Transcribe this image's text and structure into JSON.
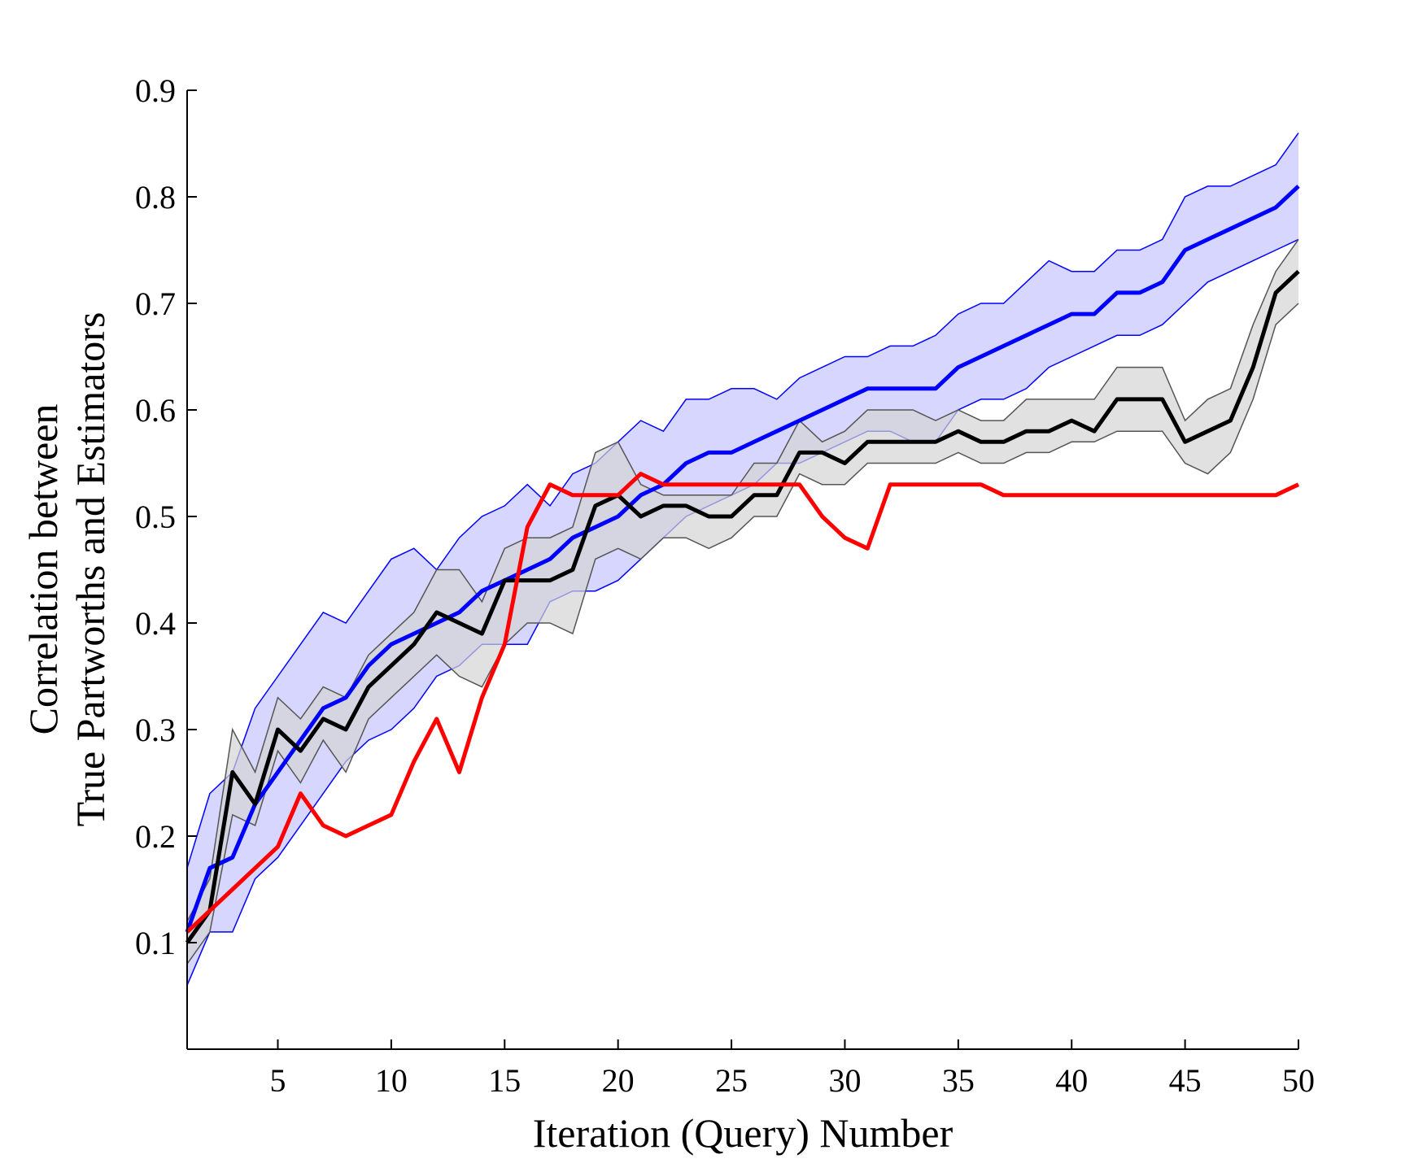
{
  "chart_data": {
    "type": "line",
    "title": "",
    "xlabel": "Iteration (Query) Number",
    "ylabel": [
      "Correlation between",
      "True Partworths and Estimators"
    ],
    "xlim": [
      1,
      50
    ],
    "ylim": [
      0,
      0.9
    ],
    "xticks": [
      5,
      10,
      15,
      20,
      25,
      30,
      35,
      40,
      45,
      50
    ],
    "yticks": [
      0.1,
      0.2,
      0.3,
      0.4,
      0.5,
      0.6,
      0.7,
      0.8,
      0.9
    ],
    "grid": false,
    "legend": "none",
    "x": [
      1,
      2,
      3,
      4,
      5,
      6,
      7,
      8,
      9,
      10,
      11,
      12,
      13,
      14,
      15,
      16,
      17,
      18,
      19,
      20,
      21,
      22,
      23,
      24,
      25,
      26,
      27,
      28,
      29,
      30,
      31,
      32,
      33,
      34,
      35,
      36,
      37,
      38,
      39,
      40,
      41,
      42,
      43,
      44,
      45,
      46,
      47,
      48,
      49,
      50
    ],
    "series": [
      {
        "color": "#0000ff",
        "band_fill": "#c8c8ff",
        "values": [
          0.11,
          0.17,
          0.18,
          0.23,
          0.26,
          0.29,
          0.32,
          0.33,
          0.36,
          0.38,
          0.39,
          0.4,
          0.41,
          0.43,
          0.44,
          0.45,
          0.46,
          0.48,
          0.49,
          0.5,
          0.52,
          0.53,
          0.55,
          0.56,
          0.56,
          0.57,
          0.58,
          0.59,
          0.6,
          0.61,
          0.62,
          0.62,
          0.62,
          0.62,
          0.64,
          0.65,
          0.66,
          0.67,
          0.68,
          0.69,
          0.69,
          0.71,
          0.71,
          0.72,
          0.75,
          0.76,
          0.77,
          0.78,
          0.79,
          0.81
        ],
        "upper": [
          0.17,
          0.24,
          0.26,
          0.32,
          0.35,
          0.38,
          0.41,
          0.4,
          0.43,
          0.46,
          0.47,
          0.45,
          0.48,
          0.5,
          0.51,
          0.53,
          0.51,
          0.54,
          0.55,
          0.57,
          0.59,
          0.58,
          0.61,
          0.61,
          0.62,
          0.62,
          0.61,
          0.63,
          0.64,
          0.65,
          0.65,
          0.66,
          0.66,
          0.67,
          0.69,
          0.7,
          0.7,
          0.72,
          0.74,
          0.73,
          0.73,
          0.75,
          0.75,
          0.76,
          0.8,
          0.81,
          0.81,
          0.82,
          0.83,
          0.86
        ],
        "lower": [
          0.06,
          0.11,
          0.11,
          0.16,
          0.18,
          0.21,
          0.24,
          0.27,
          0.29,
          0.3,
          0.32,
          0.35,
          0.36,
          0.38,
          0.38,
          0.38,
          0.42,
          0.43,
          0.43,
          0.44,
          0.46,
          0.48,
          0.5,
          0.51,
          0.52,
          0.53,
          0.55,
          0.55,
          0.56,
          0.57,
          0.58,
          0.58,
          0.57,
          0.57,
          0.6,
          0.61,
          0.61,
          0.62,
          0.64,
          0.65,
          0.66,
          0.67,
          0.67,
          0.68,
          0.7,
          0.72,
          0.73,
          0.74,
          0.75,
          0.76
        ]
      },
      {
        "color": "#000000",
        "band_fill": "#d4d4d4",
        "values": [
          0.1,
          0.13,
          0.26,
          0.23,
          0.3,
          0.28,
          0.31,
          0.3,
          0.34,
          0.36,
          0.38,
          0.41,
          0.4,
          0.39,
          0.44,
          0.44,
          0.44,
          0.45,
          0.51,
          0.52,
          0.5,
          0.51,
          0.51,
          0.5,
          0.5,
          0.52,
          0.52,
          0.56,
          0.56,
          0.55,
          0.57,
          0.57,
          0.57,
          0.57,
          0.58,
          0.57,
          0.57,
          0.58,
          0.58,
          0.59,
          0.58,
          0.61,
          0.61,
          0.61,
          0.57,
          0.58,
          0.59,
          0.64,
          0.71,
          0.73
        ],
        "upper": [
          0.12,
          0.16,
          0.3,
          0.26,
          0.33,
          0.31,
          0.34,
          0.33,
          0.37,
          0.39,
          0.41,
          0.45,
          0.45,
          0.42,
          0.47,
          0.48,
          0.48,
          0.49,
          0.56,
          0.57,
          0.53,
          0.52,
          0.52,
          0.52,
          0.52,
          0.55,
          0.55,
          0.59,
          0.57,
          0.58,
          0.6,
          0.6,
          0.6,
          0.59,
          0.6,
          0.59,
          0.59,
          0.61,
          0.61,
          0.61,
          0.61,
          0.64,
          0.64,
          0.64,
          0.59,
          0.61,
          0.62,
          0.68,
          0.73,
          0.76
        ],
        "lower": [
          0.08,
          0.11,
          0.22,
          0.21,
          0.28,
          0.25,
          0.29,
          0.26,
          0.31,
          0.33,
          0.35,
          0.37,
          0.35,
          0.34,
          0.38,
          0.4,
          0.4,
          0.39,
          0.46,
          0.47,
          0.46,
          0.48,
          0.48,
          0.47,
          0.48,
          0.5,
          0.5,
          0.54,
          0.53,
          0.53,
          0.55,
          0.55,
          0.55,
          0.55,
          0.56,
          0.55,
          0.55,
          0.56,
          0.56,
          0.57,
          0.57,
          0.58,
          0.58,
          0.58,
          0.55,
          0.54,
          0.56,
          0.61,
          0.68,
          0.7
        ]
      },
      {
        "color": "#ff0000",
        "values": [
          0.11,
          0.13,
          0.15,
          0.17,
          0.19,
          0.24,
          0.21,
          0.2,
          0.21,
          0.22,
          0.27,
          0.31,
          0.26,
          0.33,
          0.38,
          0.49,
          0.53,
          0.52,
          0.52,
          0.52,
          0.54,
          0.53,
          0.53,
          0.53,
          0.53,
          0.53,
          0.53,
          0.53,
          0.5,
          0.48,
          0.47,
          0.53,
          0.53,
          0.53,
          0.53,
          0.53,
          0.52,
          0.52,
          0.52,
          0.52,
          0.52,
          0.52,
          0.52,
          0.52,
          0.52,
          0.52,
          0.52,
          0.52,
          0.52,
          0.53
        ]
      }
    ]
  }
}
